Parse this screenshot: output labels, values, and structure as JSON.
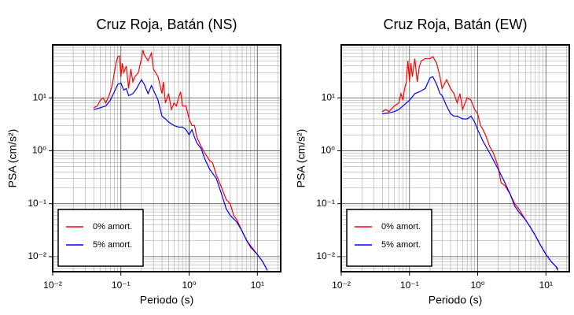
{
  "chart_data": [
    {
      "type": "line",
      "title": "Cruz Roja, Batán (NS)",
      "xlabel": "Periodo (s)",
      "ylabel": "PSA (cm/s²)",
      "xscale": "log",
      "yscale": "log",
      "xlim": [
        0.01,
        22
      ],
      "ylim": [
        0.0052,
        100
      ],
      "xticks": [
        {
          "value": 0.01,
          "label": "10⁻²"
        },
        {
          "value": 0.1,
          "label": "10⁻¹"
        },
        {
          "value": 1,
          "label": "10⁰"
        },
        {
          "value": 10,
          "label": "10¹"
        }
      ],
      "yticks": [
        {
          "value": 0.01,
          "label": "10⁻²"
        },
        {
          "value": 0.1,
          "label": "10⁻¹"
        },
        {
          "value": 1,
          "label": "10⁰"
        },
        {
          "value": 10,
          "label": "10¹"
        }
      ],
      "grid": true,
      "legend": "lower left",
      "series": [
        {
          "name": "0% amort.",
          "color": "#ff0000",
          "x": [
            0.04,
            0.045,
            0.05,
            0.055,
            0.06,
            0.065,
            0.07,
            0.075,
            0.08,
            0.085,
            0.09,
            0.095,
            0.1,
            0.105,
            0.11,
            0.12,
            0.13,
            0.14,
            0.15,
            0.16,
            0.18,
            0.2,
            0.21,
            0.22,
            0.25,
            0.28,
            0.3,
            0.35,
            0.4,
            0.42,
            0.45,
            0.5,
            0.55,
            0.6,
            0.65,
            0.7,
            0.75,
            0.8,
            0.9,
            1.0,
            1.1,
            1.2,
            1.3,
            1.5,
            1.7,
            2.0,
            2.2,
            2.5,
            3.0,
            3.5,
            4.0,
            4.5,
            5,
            6,
            7,
            8,
            10,
            12,
            14
          ],
          "values": [
            6.5,
            7,
            9,
            10,
            8,
            10,
            13,
            18,
            30,
            45,
            60,
            62,
            25,
            45,
            30,
            40,
            15,
            35,
            20,
            25,
            30,
            55,
            80,
            65,
            50,
            70,
            35,
            25,
            12,
            20,
            8,
            12,
            6,
            8,
            7,
            10,
            13,
            7,
            7,
            4,
            3,
            3,
            1.8,
            1.2,
            0.9,
            0.65,
            0.6,
            0.35,
            0.2,
            0.12,
            0.1,
            0.06,
            0.05,
            0.03,
            0.02,
            0.016,
            0.011,
            0.008,
            0.0055
          ]
        },
        {
          "name": "5% amort.",
          "color": "#0000ff",
          "x": [
            0.04,
            0.05,
            0.06,
            0.07,
            0.08,
            0.09,
            0.1,
            0.11,
            0.12,
            0.13,
            0.15,
            0.17,
            0.2,
            0.22,
            0.25,
            0.28,
            0.3,
            0.35,
            0.4,
            0.45,
            0.5,
            0.6,
            0.7,
            0.8,
            0.9,
            1.0,
            1.1,
            1.2,
            1.3,
            1.5,
            1.7,
            2.0,
            2.5,
            3,
            3.5,
            4,
            5,
            6,
            7,
            8,
            10,
            12,
            14
          ],
          "values": [
            6,
            6.5,
            7,
            9,
            13,
            18,
            19,
            14,
            15,
            11,
            12,
            15,
            22,
            18,
            12,
            17,
            14,
            9,
            4.5,
            4,
            3.5,
            3,
            2.8,
            2.8,
            2.5,
            2,
            2.5,
            1.8,
            1.4,
            1.1,
            0.7,
            0.45,
            0.3,
            0.15,
            0.08,
            0.06,
            0.045,
            0.03,
            0.02,
            0.015,
            0.011,
            0.008,
            0.0055
          ]
        }
      ]
    },
    {
      "type": "line",
      "title": "Cruz Roja, Batán (EW)",
      "xlabel": "Periodo (s)",
      "ylabel": "PSA (cm/s²)",
      "xscale": "log",
      "yscale": "log",
      "xlim": [
        0.01,
        22
      ],
      "ylim": [
        0.0052,
        100
      ],
      "xticks": [
        {
          "value": 0.01,
          "label": "10⁻²"
        },
        {
          "value": 0.1,
          "label": "10⁻¹"
        },
        {
          "value": 1,
          "label": "10⁰"
        },
        {
          "value": 10,
          "label": "10¹"
        }
      ],
      "yticks": [
        {
          "value": 0.01,
          "label": "10⁻²"
        },
        {
          "value": 0.1,
          "label": "10⁻¹"
        },
        {
          "value": 1,
          "label": "10⁰"
        },
        {
          "value": 10,
          "label": "10¹"
        }
      ],
      "grid": true,
      "legend": "lower left",
      "series": [
        {
          "name": "0% amort.",
          "color": "#ff0000",
          "x": [
            0.04,
            0.045,
            0.05,
            0.06,
            0.07,
            0.075,
            0.08,
            0.085,
            0.09,
            0.095,
            0.1,
            0.105,
            0.11,
            0.12,
            0.13,
            0.14,
            0.15,
            0.17,
            0.2,
            0.22,
            0.25,
            0.28,
            0.3,
            0.35,
            0.4,
            0.45,
            0.5,
            0.55,
            0.6,
            0.7,
            0.8,
            0.9,
            1.0,
            1.1,
            1.2,
            1.3,
            1.5,
            1.7,
            2.0,
            2.2,
            2.5,
            3,
            3.5,
            4,
            5,
            6,
            7,
            8,
            10,
            12,
            14,
            15
          ],
          "values": [
            5.5,
            6,
            5.5,
            7,
            8,
            12,
            9,
            15,
            20,
            50,
            20,
            45,
            25,
            55,
            20,
            40,
            50,
            55,
            55,
            60,
            45,
            25,
            15,
            22,
            15,
            12,
            8,
            12,
            6,
            10,
            9,
            6,
            5,
            3,
            2.5,
            2,
            1.2,
            0.9,
            0.5,
            0.25,
            0.22,
            0.15,
            0.1,
            0.08,
            0.05,
            0.035,
            0.025,
            0.018,
            0.011,
            0.008,
            0.0065,
            0.006
          ]
        },
        {
          "name": "5% amort.",
          "color": "#0000ff",
          "x": [
            0.04,
            0.05,
            0.06,
            0.07,
            0.08,
            0.09,
            0.1,
            0.12,
            0.14,
            0.17,
            0.2,
            0.22,
            0.25,
            0.28,
            0.3,
            0.35,
            0.4,
            0.45,
            0.5,
            0.6,
            0.7,
            0.8,
            0.9,
            1.0,
            1.2,
            1.5,
            2.0,
            2.5,
            3,
            3.5,
            4,
            5,
            6,
            7,
            8,
            10,
            12,
            14,
            15
          ],
          "values": [
            5,
            5.2,
            5.5,
            6,
            7,
            8,
            9,
            12,
            13,
            15,
            24,
            25,
            18,
            12,
            11,
            7,
            5,
            4.5,
            4.5,
            4,
            4,
            4.5,
            3.5,
            2.5,
            1.5,
            0.9,
            0.45,
            0.25,
            0.15,
            0.09,
            0.07,
            0.05,
            0.035,
            0.025,
            0.018,
            0.011,
            0.008,
            0.0065,
            0.0055
          ]
        }
      ]
    }
  ]
}
